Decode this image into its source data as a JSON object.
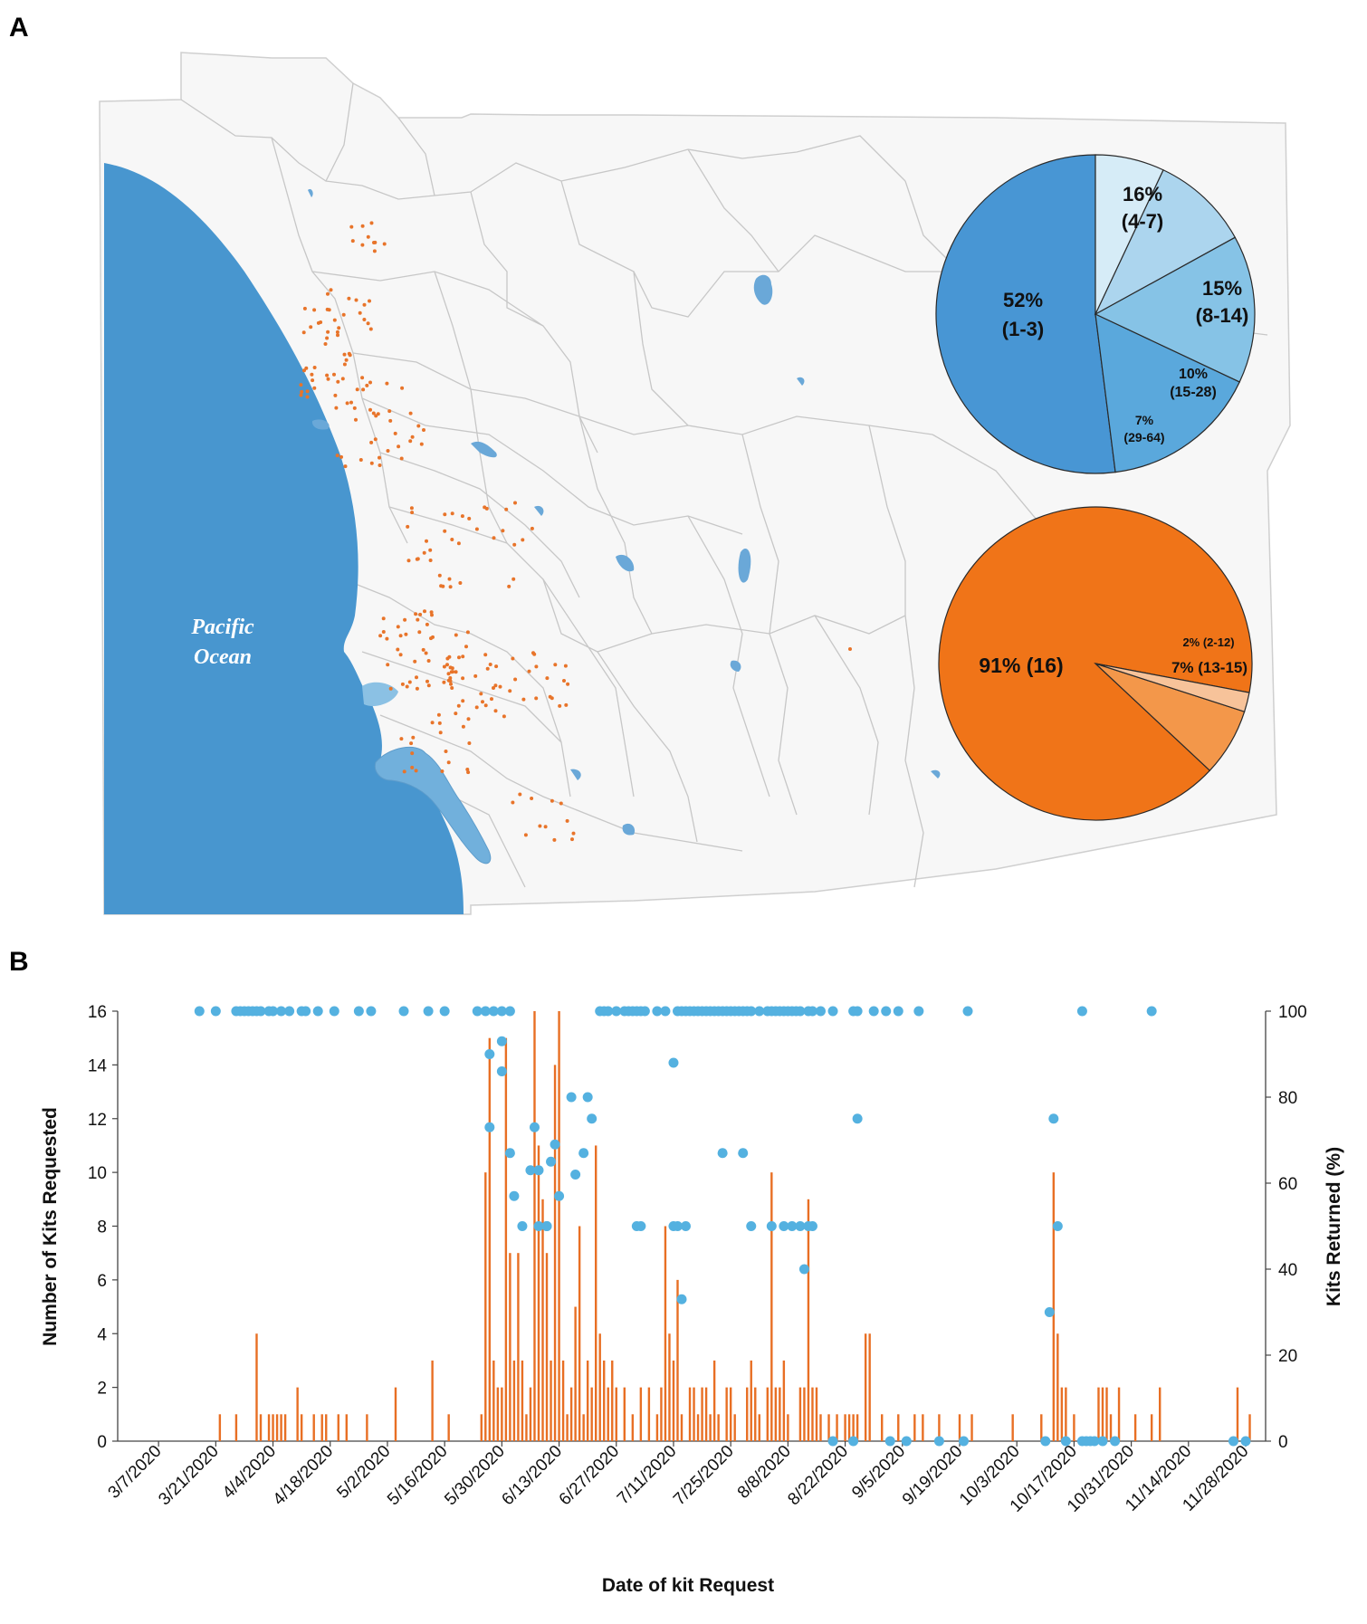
{
  "panels": {
    "a_label": "A",
    "b_label": "B"
  },
  "map": {
    "ocean_label_line1": "Pacific",
    "ocean_label_line2": "Ocean"
  },
  "colors": {
    "ocean": "#4896cf",
    "land": "#f7f7f7",
    "border": "#c8c8c8",
    "dot": "#e8742a",
    "bar": "#e86f24",
    "point": "#54b1e0"
  },
  "chart_data": [
    {
      "type": "pie",
      "title": "",
      "slices": [
        {
          "pct": "52%",
          "range": "(1-3)",
          "value": 52,
          "color": "#4896d4"
        },
        {
          "pct": "16%",
          "range": "(4-7)",
          "value": 16,
          "color": "#5aa8dc"
        },
        {
          "pct": "15%",
          "range": "(8-14)",
          "value": 15,
          "color": "#86c3e6"
        },
        {
          "pct": "10%",
          "range": "(15-28)",
          "value": 10,
          "color": "#acd5ee"
        },
        {
          "pct": "7%",
          "range": "(29-64)",
          "value": 7,
          "color": "#d6ecf7"
        }
      ]
    },
    {
      "type": "pie",
      "title": "",
      "slices": [
        {
          "label": "91% (16)",
          "value": 91,
          "color": "#f07418"
        },
        {
          "label": "7% (13-15)",
          "value": 7,
          "color": "#f3974a"
        },
        {
          "label": "2% (2-12)",
          "value": 2,
          "color": "#f7c39a"
        }
      ]
    },
    {
      "type": "bar",
      "xlabel": "Date of kit Request",
      "ylabel": "Number of Kits Requested",
      "y2label": "Kits Returned (%)",
      "ylim": [
        0,
        16
      ],
      "y2lim": [
        0,
        100
      ],
      "yticks": [
        "0",
        "2",
        "4",
        "6",
        "8",
        "10",
        "12",
        "14",
        "16"
      ],
      "y2ticks": [
        "0",
        "20",
        "40",
        "60",
        "80",
        "100"
      ],
      "xtick_labels": [
        "3/7/2020",
        "3/21/2020",
        "4/4/2020",
        "4/18/2020",
        "5/2/2020",
        "5/16/2020",
        "5/30/2020",
        "6/13/2020",
        "6/27/2020",
        "7/11/2020",
        "7/25/2020",
        "8/8/2020",
        "8/22/2020",
        "9/5/2020",
        "9/19/2020",
        "10/3/2020",
        "10/17/2020",
        "10/31/2020",
        "11/14/2020",
        "11/28/2020"
      ],
      "bars": [
        [
          15,
          1
        ],
        [
          19,
          1
        ],
        [
          24,
          4
        ],
        [
          25,
          1
        ],
        [
          27,
          1
        ],
        [
          28,
          1
        ],
        [
          29,
          1
        ],
        [
          30,
          1
        ],
        [
          31,
          1
        ],
        [
          34,
          2
        ],
        [
          35,
          1
        ],
        [
          38,
          1
        ],
        [
          40,
          1
        ],
        [
          41,
          1
        ],
        [
          44,
          1
        ],
        [
          46,
          1
        ],
        [
          51,
          1
        ],
        [
          58,
          2
        ],
        [
          67,
          3
        ],
        [
          71,
          1
        ],
        [
          79,
          1
        ],
        [
          80,
          10
        ],
        [
          81,
          15
        ],
        [
          82,
          3
        ],
        [
          83,
          2
        ],
        [
          84,
          2
        ],
        [
          85,
          15
        ],
        [
          86,
          7
        ],
        [
          87,
          3
        ],
        [
          88,
          7
        ],
        [
          89,
          3
        ],
        [
          90,
          1
        ],
        [
          91,
          2
        ],
        [
          92,
          16
        ],
        [
          93,
          11
        ],
        [
          94,
          9
        ],
        [
          95,
          7
        ],
        [
          96,
          3
        ],
        [
          97,
          14
        ],
        [
          98,
          16
        ],
        [
          99,
          3
        ],
        [
          100,
          1
        ],
        [
          101,
          2
        ],
        [
          102,
          5
        ],
        [
          103,
          8
        ],
        [
          104,
          1
        ],
        [
          105,
          3
        ],
        [
          106,
          2
        ],
        [
          107,
          11
        ],
        [
          108,
          4
        ],
        [
          109,
          3
        ],
        [
          110,
          2
        ],
        [
          111,
          3
        ],
        [
          112,
          2
        ],
        [
          114,
          2
        ],
        [
          116,
          1
        ],
        [
          118,
          2
        ],
        [
          120,
          2
        ],
        [
          122,
          1
        ],
        [
          123,
          2
        ],
        [
          124,
          8
        ],
        [
          125,
          4
        ],
        [
          126,
          3
        ],
        [
          127,
          6
        ],
        [
          128,
          1
        ],
        [
          130,
          2
        ],
        [
          131,
          2
        ],
        [
          132,
          1
        ],
        [
          133,
          2
        ],
        [
          134,
          2
        ],
        [
          135,
          1
        ],
        [
          136,
          3
        ],
        [
          137,
          1
        ],
        [
          139,
          2
        ],
        [
          140,
          2
        ],
        [
          141,
          1
        ],
        [
          144,
          2
        ],
        [
          145,
          3
        ],
        [
          146,
          2
        ],
        [
          147,
          1
        ],
        [
          149,
          2
        ],
        [
          150,
          10
        ],
        [
          151,
          2
        ],
        [
          152,
          2
        ],
        [
          153,
          3
        ],
        [
          154,
          1
        ],
        [
          157,
          2
        ],
        [
          158,
          2
        ],
        [
          159,
          9
        ],
        [
          160,
          2
        ],
        [
          161,
          2
        ],
        [
          162,
          1
        ],
        [
          164,
          1
        ],
        [
          166,
          1
        ],
        [
          168,
          1
        ],
        [
          169,
          1
        ],
        [
          170,
          1
        ],
        [
          171,
          1
        ],
        [
          173,
          4
        ],
        [
          174,
          4
        ],
        [
          177,
          1
        ],
        [
          181,
          1
        ],
        [
          185,
          1
        ],
        [
          187,
          1
        ],
        [
          191,
          1
        ],
        [
          196,
          1
        ],
        [
          199,
          1
        ],
        [
          209,
          1
        ],
        [
          216,
          1
        ],
        [
          219,
          10
        ],
        [
          220,
          4
        ],
        [
          221,
          2
        ],
        [
          222,
          2
        ],
        [
          224,
          1
        ],
        [
          230,
          2
        ],
        [
          231,
          2
        ],
        [
          232,
          2
        ],
        [
          233,
          1
        ],
        [
          235,
          2
        ],
        [
          239,
          1
        ],
        [
          243,
          1
        ],
        [
          245,
          2
        ],
        [
          264,
          2
        ],
        [
          267,
          1
        ]
      ],
      "points": [
        [
          10,
          100
        ],
        [
          14,
          100
        ],
        [
          19,
          100
        ],
        [
          20,
          100
        ],
        [
          21,
          100
        ],
        [
          22,
          100
        ],
        [
          23,
          100
        ],
        [
          24,
          100
        ],
        [
          25,
          100
        ],
        [
          27,
          100
        ],
        [
          28,
          100
        ],
        [
          30,
          100
        ],
        [
          32,
          100
        ],
        [
          35,
          100
        ],
        [
          36,
          100
        ],
        [
          39,
          100
        ],
        [
          43,
          100
        ],
        [
          49,
          100
        ],
        [
          52,
          100
        ],
        [
          60,
          100
        ],
        [
          66,
          100
        ],
        [
          70,
          100
        ],
        [
          78,
          100
        ],
        [
          80,
          100
        ],
        [
          82,
          100
        ],
        [
          84,
          100
        ],
        [
          86,
          100
        ],
        [
          81,
          90
        ],
        [
          81,
          73
        ],
        [
          84,
          93
        ],
        [
          84,
          86
        ],
        [
          86,
          67
        ],
        [
          87,
          57
        ],
        [
          89,
          50
        ],
        [
          91,
          63
        ],
        [
          92,
          73
        ],
        [
          93,
          63
        ],
        [
          93,
          50
        ],
        [
          95,
          50
        ],
        [
          95,
          50
        ],
        [
          96,
          65
        ],
        [
          97,
          69
        ],
        [
          98,
          57
        ],
        [
          101,
          80
        ],
        [
          102,
          62
        ],
        [
          104,
          67
        ],
        [
          105,
          80
        ],
        [
          106,
          75
        ],
        [
          108,
          100
        ],
        [
          109,
          100
        ],
        [
          110,
          100
        ],
        [
          112,
          100
        ],
        [
          114,
          100
        ],
        [
          115,
          100
        ],
        [
          116,
          100
        ],
        [
          117,
          100
        ],
        [
          118,
          100
        ],
        [
          119,
          100
        ],
        [
          122,
          100
        ],
        [
          124,
          100
        ],
        [
          126,
          88
        ],
        [
          127,
          100
        ],
        [
          128,
          100
        ],
        [
          129,
          100
        ],
        [
          130,
          100
        ],
        [
          131,
          100
        ],
        [
          132,
          100
        ],
        [
          133,
          100
        ],
        [
          134,
          100
        ],
        [
          135,
          100
        ],
        [
          136,
          100
        ],
        [
          137,
          100
        ],
        [
          138,
          100
        ],
        [
          139,
          100
        ],
        [
          140,
          100
        ],
        [
          141,
          100
        ],
        [
          142,
          100
        ],
        [
          143,
          100
        ],
        [
          144,
          100
        ],
        [
          145,
          100
        ],
        [
          147,
          100
        ],
        [
          149,
          100
        ],
        [
          150,
          100
        ],
        [
          151,
          100
        ],
        [
          152,
          100
        ],
        [
          153,
          100
        ],
        [
          154,
          100
        ],
        [
          155,
          100
        ],
        [
          156,
          100
        ],
        [
          157,
          100
        ],
        [
          159,
          100
        ],
        [
          160,
          100
        ],
        [
          162,
          100
        ],
        [
          165,
          100
        ],
        [
          170,
          100
        ],
        [
          171,
          100
        ],
        [
          175,
          100
        ],
        [
          178,
          100
        ],
        [
          181,
          100
        ],
        [
          186,
          100
        ],
        [
          198,
          100
        ],
        [
          226,
          100
        ],
        [
          243,
          100
        ],
        [
          117,
          50
        ],
        [
          118,
          50
        ],
        [
          126,
          50
        ],
        [
          127,
          50
        ],
        [
          128,
          33
        ],
        [
          129,
          50
        ],
        [
          138,
          67
        ],
        [
          143,
          67
        ],
        [
          145,
          50
        ],
        [
          150,
          50
        ],
        [
          153,
          50
        ],
        [
          155,
          50
        ],
        [
          157,
          50
        ],
        [
          158,
          40
        ],
        [
          159,
          50
        ],
        [
          160,
          50
        ],
        [
          171,
          75
        ],
        [
          165,
          0
        ],
        [
          170,
          0
        ],
        [
          179,
          0
        ],
        [
          183,
          0
        ],
        [
          191,
          0
        ],
        [
          197,
          0
        ],
        [
          217,
          0
        ],
        [
          218,
          30
        ],
        [
          219,
          75
        ],
        [
          220,
          50
        ],
        [
          222,
          0
        ],
        [
          226,
          0
        ],
        [
          227,
          0
        ],
        [
          228,
          0
        ],
        [
          229,
          0
        ],
        [
          231,
          0
        ],
        [
          234,
          0
        ],
        [
          263,
          0
        ],
        [
          266,
          0
        ]
      ]
    }
  ]
}
